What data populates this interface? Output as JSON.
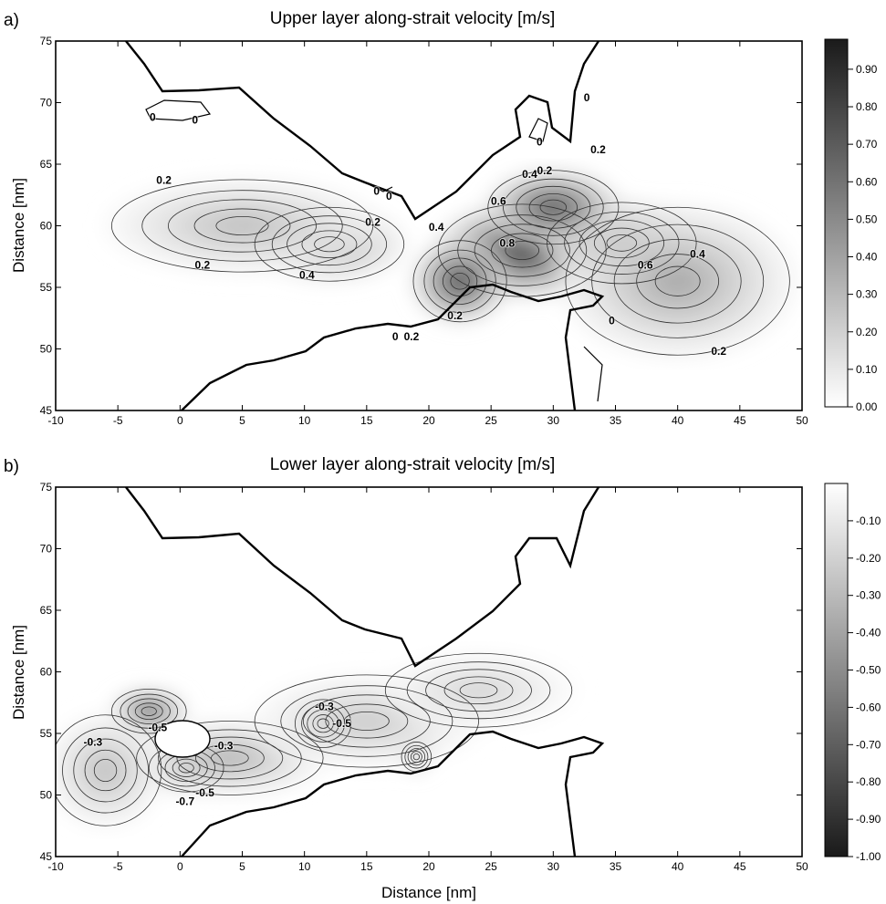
{
  "chart_data": [
    {
      "type": "heatmap",
      "panel_label": "a)",
      "title": "Upper layer along-strait velocity [m/s]",
      "xlabel": "",
      "ylabel": "Distance [nm]",
      "xlim": [
        -10,
        50
      ],
      "ylim": [
        45,
        75
      ],
      "x_ticks": [
        -10,
        -5,
        0,
        5,
        10,
        15,
        20,
        25,
        30,
        35,
        40,
        45,
        50
      ],
      "y_ticks": [
        45,
        50,
        55,
        60,
        65,
        70,
        75
      ],
      "colorbar": {
        "range": [
          0.0,
          0.98
        ],
        "tick_values": [
          0.0,
          0.1,
          0.2,
          0.3,
          0.4,
          0.5,
          0.6,
          0.7,
          0.8,
          0.9
        ],
        "tick_labels": [
          "0.00",
          "0.10",
          "0.20",
          "0.30",
          "0.40",
          "0.50",
          "0.60",
          "0.70",
          "0.80",
          "0.90"
        ],
        "colormap": "white-to-black"
      },
      "contour_labels": [
        {
          "text": "0",
          "x": -2.2,
          "y": 68.8
        },
        {
          "text": "0",
          "x": 1.2,
          "y": 68.6
        },
        {
          "text": "0.2",
          "x": -1.3,
          "y": 63.7
        },
        {
          "text": "0.2",
          "x": 1.8,
          "y": 56.8
        },
        {
          "text": "0.4",
          "x": 10.2,
          "y": 56.0
        },
        {
          "text": "0.2",
          "x": 15.5,
          "y": 60.3
        },
        {
          "text": "0",
          "x": 15.8,
          "y": 62.8
        },
        {
          "text": "0",
          "x": 16.8,
          "y": 62.4
        },
        {
          "text": "0.4",
          "x": 20.6,
          "y": 59.9
        },
        {
          "text": "0.6",
          "x": 25.6,
          "y": 62.0
        },
        {
          "text": "0.8",
          "x": 26.3,
          "y": 58.6
        },
        {
          "text": "0.4",
          "x": 28.1,
          "y": 64.2
        },
        {
          "text": "0.2",
          "x": 29.3,
          "y": 64.5
        },
        {
          "text": "0.2",
          "x": 33.6,
          "y": 66.2
        },
        {
          "text": "0",
          "x": 28.9,
          "y": 66.8
        },
        {
          "text": "0",
          "x": 32.7,
          "y": 70.4
        },
        {
          "text": "0.6",
          "x": 37.4,
          "y": 56.8
        },
        {
          "text": "0.4",
          "x": 41.6,
          "y": 57.7
        },
        {
          "text": "0.2",
          "x": 22.1,
          "y": 52.7
        },
        {
          "text": "0.2",
          "x": 18.6,
          "y": 51.0
        },
        {
          "text": "0",
          "x": 17.3,
          "y": 51.0
        },
        {
          "text": "0.2",
          "x": 43.3,
          "y": 49.8
        },
        {
          "text": "0",
          "x": 34.7,
          "y": 52.3
        }
      ],
      "features": [
        {
          "kind": "max",
          "x": 27.5,
          "y": 58.0,
          "value": 0.88,
          "sx": 4.5,
          "sy": 2.5
        },
        {
          "kind": "max",
          "x": 35.5,
          "y": 58.6,
          "value": 0.75,
          "sx": 4.0,
          "sy": 2.2
        },
        {
          "kind": "max",
          "x": 22.5,
          "y": 55.5,
          "value": 0.82,
          "sx": 2.5,
          "sy": 2.2
        },
        {
          "kind": "max",
          "x": 30.0,
          "y": 61.5,
          "value": 0.78,
          "sx": 3.5,
          "sy": 2.0
        },
        {
          "kind": "max",
          "x": 40.0,
          "y": 55.5,
          "value": 0.4,
          "sx": 6.0,
          "sy": 4.0
        },
        {
          "kind": "max",
          "x": 12.0,
          "y": 58.5,
          "value": 0.42,
          "sx": 4.0,
          "sy": 2.0
        },
        {
          "kind": "max",
          "x": 5.0,
          "y": 60.0,
          "value": 0.3,
          "sx": 7.0,
          "sy": 2.5
        }
      ]
    },
    {
      "type": "heatmap",
      "panel_label": "b)",
      "title": "Lower layer along-strait velocity [m/s]",
      "xlabel": "Distance [nm]",
      "ylabel": "Distance [nm]",
      "xlim": [
        -10,
        50
      ],
      "ylim": [
        45,
        75
      ],
      "x_ticks": [
        -10,
        -5,
        0,
        5,
        10,
        15,
        20,
        25,
        30,
        35,
        40,
        45,
        50
      ],
      "y_ticks": [
        45,
        50,
        55,
        60,
        65,
        70,
        75
      ],
      "colorbar": {
        "range": [
          -1.0,
          0.0
        ],
        "tick_values": [
          -1.0,
          -0.9,
          -0.8,
          -0.7,
          -0.6,
          -0.5,
          -0.4,
          -0.3,
          -0.2,
          -0.1
        ],
        "tick_labels": [
          "-1.00",
          "-0.90",
          "-0.80",
          "-0.70",
          "-0.60",
          "-0.50",
          "-0.40",
          "-0.30",
          "-0.20",
          "-0.10"
        ],
        "colormap": "black-to-white"
      },
      "contour_labels": [
        {
          "text": "-0.3",
          "x": -7.0,
          "y": 54.3
        },
        {
          "text": "-0.5",
          "x": -1.8,
          "y": 55.5
        },
        {
          "text": "-0.3",
          "x": 3.5,
          "y": 54.0
        },
        {
          "text": "-0.5",
          "x": 2.0,
          "y": 50.2
        },
        {
          "text": "-0.7",
          "x": 0.4,
          "y": 49.5
        },
        {
          "text": "-0.3",
          "x": 11.6,
          "y": 57.2
        },
        {
          "text": "-0.5",
          "x": 13.0,
          "y": 55.8
        }
      ],
      "features": [
        {
          "kind": "min",
          "x": -2.5,
          "y": 56.8,
          "value": -0.68,
          "sx": 2.0,
          "sy": 1.2
        },
        {
          "kind": "min",
          "x": 0.5,
          "y": 52.2,
          "value": -0.85,
          "sx": 2.0,
          "sy": 1.3
        },
        {
          "kind": "min",
          "x": 11.5,
          "y": 55.8,
          "value": -0.72,
          "sx": 1.5,
          "sy": 1.3
        },
        {
          "kind": "min",
          "x": 19.0,
          "y": 53.1,
          "value": -0.62,
          "sx": 0.8,
          "sy": 0.8
        },
        {
          "kind": "min",
          "x": 4.0,
          "y": 53.0,
          "value": -0.35,
          "sx": 5.0,
          "sy": 2.0
        },
        {
          "kind": "min",
          "x": 15.0,
          "y": 56.0,
          "value": -0.25,
          "sx": 6.0,
          "sy": 2.5
        },
        {
          "kind": "min",
          "x": 24.0,
          "y": 58.5,
          "value": -0.2,
          "sx": 5.0,
          "sy": 2.0
        },
        {
          "kind": "min",
          "x": -6.0,
          "y": 52.0,
          "value": -0.3,
          "sx": 3.0,
          "sy": 3.0
        }
      ]
    }
  ]
}
